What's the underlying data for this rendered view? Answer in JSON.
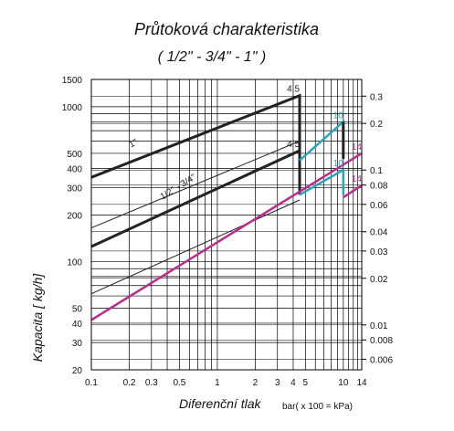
{
  "chart_data": {
    "type": "line",
    "title": "Průtoková charakteristika",
    "subtitle": "( 1/2\" - 3/4\" - 1\" )",
    "xlabel": "Diferenční tlak",
    "xunit": "bar( x 100 = kPa)",
    "ylabel": "Kapacita [ kg/h]",
    "x_scale": "log",
    "y_scale": "log",
    "xlim": [
      0.1,
      14
    ],
    "ylim": [
      20,
      1500
    ],
    "x_ticks": [
      "0.1",
      "0.2",
      "0.3",
      "0.5",
      "1",
      "2",
      "3",
      "4",
      "5",
      "10",
      "14"
    ],
    "x_tick_values": [
      0.1,
      0.2,
      0.3,
      0.5,
      1,
      2,
      3,
      4,
      5,
      10,
      14
    ],
    "y_ticks": [
      "20",
      "30",
      "40",
      "50",
      "100",
      "200",
      "300",
      "400",
      "500",
      "1000",
      "1500"
    ],
    "y_tick_values": [
      20,
      30,
      40,
      50,
      100,
      200,
      300,
      400,
      500,
      1000,
      1500
    ],
    "y2_ticks": [
      "0.006",
      "0.008",
      "0.01",
      "0.02",
      "0.03",
      "0.04",
      "0.06",
      "0.08",
      "0.1",
      "0.2",
      "0.3"
    ],
    "y2_tick_values": [
      0.006,
      0.008,
      0.01,
      0.02,
      0.03,
      0.04,
      0.06,
      0.08,
      0.1,
      0.2,
      0.3
    ],
    "y2_to_y_factor": 3900,
    "grid": true,
    "series": [
      {
        "name": "1\"",
        "color": "#222222",
        "width": 3,
        "x": [
          0.1,
          4.5,
          4.5
        ],
        "y": [
          350,
          1180,
          450
        ]
      },
      {
        "name": "1/2\" - 3/4\"",
        "color": "#222222",
        "width": 3,
        "x": [
          0.1,
          4.5,
          4.5
        ],
        "y": [
          125,
          520,
          270
        ]
      },
      {
        "name": "",
        "color": "#222222",
        "width": 1,
        "x": [
          0.1,
          4.5
        ],
        "y": [
          165,
          600
        ]
      },
      {
        "name": "",
        "color": "#222222",
        "width": 1,
        "x": [
          0.1,
          4.5
        ],
        "y": [
          62,
          250
        ]
      },
      {
        "name": "",
        "color": "#2aa3bd",
        "width": 2.5,
        "x": [
          4.5,
          10,
          10
        ],
        "y": [
          450,
          800,
          640
        ]
      },
      {
        "name": "",
        "color": "#2aa3bd",
        "width": 2.5,
        "x": [
          4.5,
          10,
          10
        ],
        "y": [
          270,
          390,
          270
        ]
      },
      {
        "name": "",
        "color": "#222222",
        "width": 3,
        "x": [
          10,
          10
        ],
        "y": [
          800,
          460
        ]
      },
      {
        "name": "",
        "color": "#bb2c8c",
        "width": 2.5,
        "x": [
          0.1,
          14
        ],
        "y": [
          42,
          500
        ]
      },
      {
        "name": "",
        "color": "#bb2c8c",
        "width": 2.5,
        "x": [
          10,
          14
        ],
        "y": [
          260,
          310
        ]
      }
    ],
    "annotations": [
      {
        "text": "4.5",
        "x": 4.5,
        "y": 1180,
        "color": "#222222"
      },
      {
        "text": "4.5",
        "x": 4.5,
        "y": 520,
        "color": "#222222"
      },
      {
        "text": "10",
        "x": 10,
        "y": 800,
        "color": "#2aa3bd"
      },
      {
        "text": "10",
        "x": 10,
        "y": 390,
        "color": "#2aa3bd"
      },
      {
        "text": "14",
        "x": 14,
        "y": 500,
        "color": "#bb2c8c"
      },
      {
        "text": "14",
        "x": 14,
        "y": 310,
        "color": "#bb2c8c"
      },
      {
        "text": "1\"",
        "x": 0.22,
        "y": 560,
        "color": "#222222"
      },
      {
        "text": "1/2\" - 3/4\"",
        "x": 0.5,
        "y": 270,
        "color": "#222222"
      }
    ]
  }
}
